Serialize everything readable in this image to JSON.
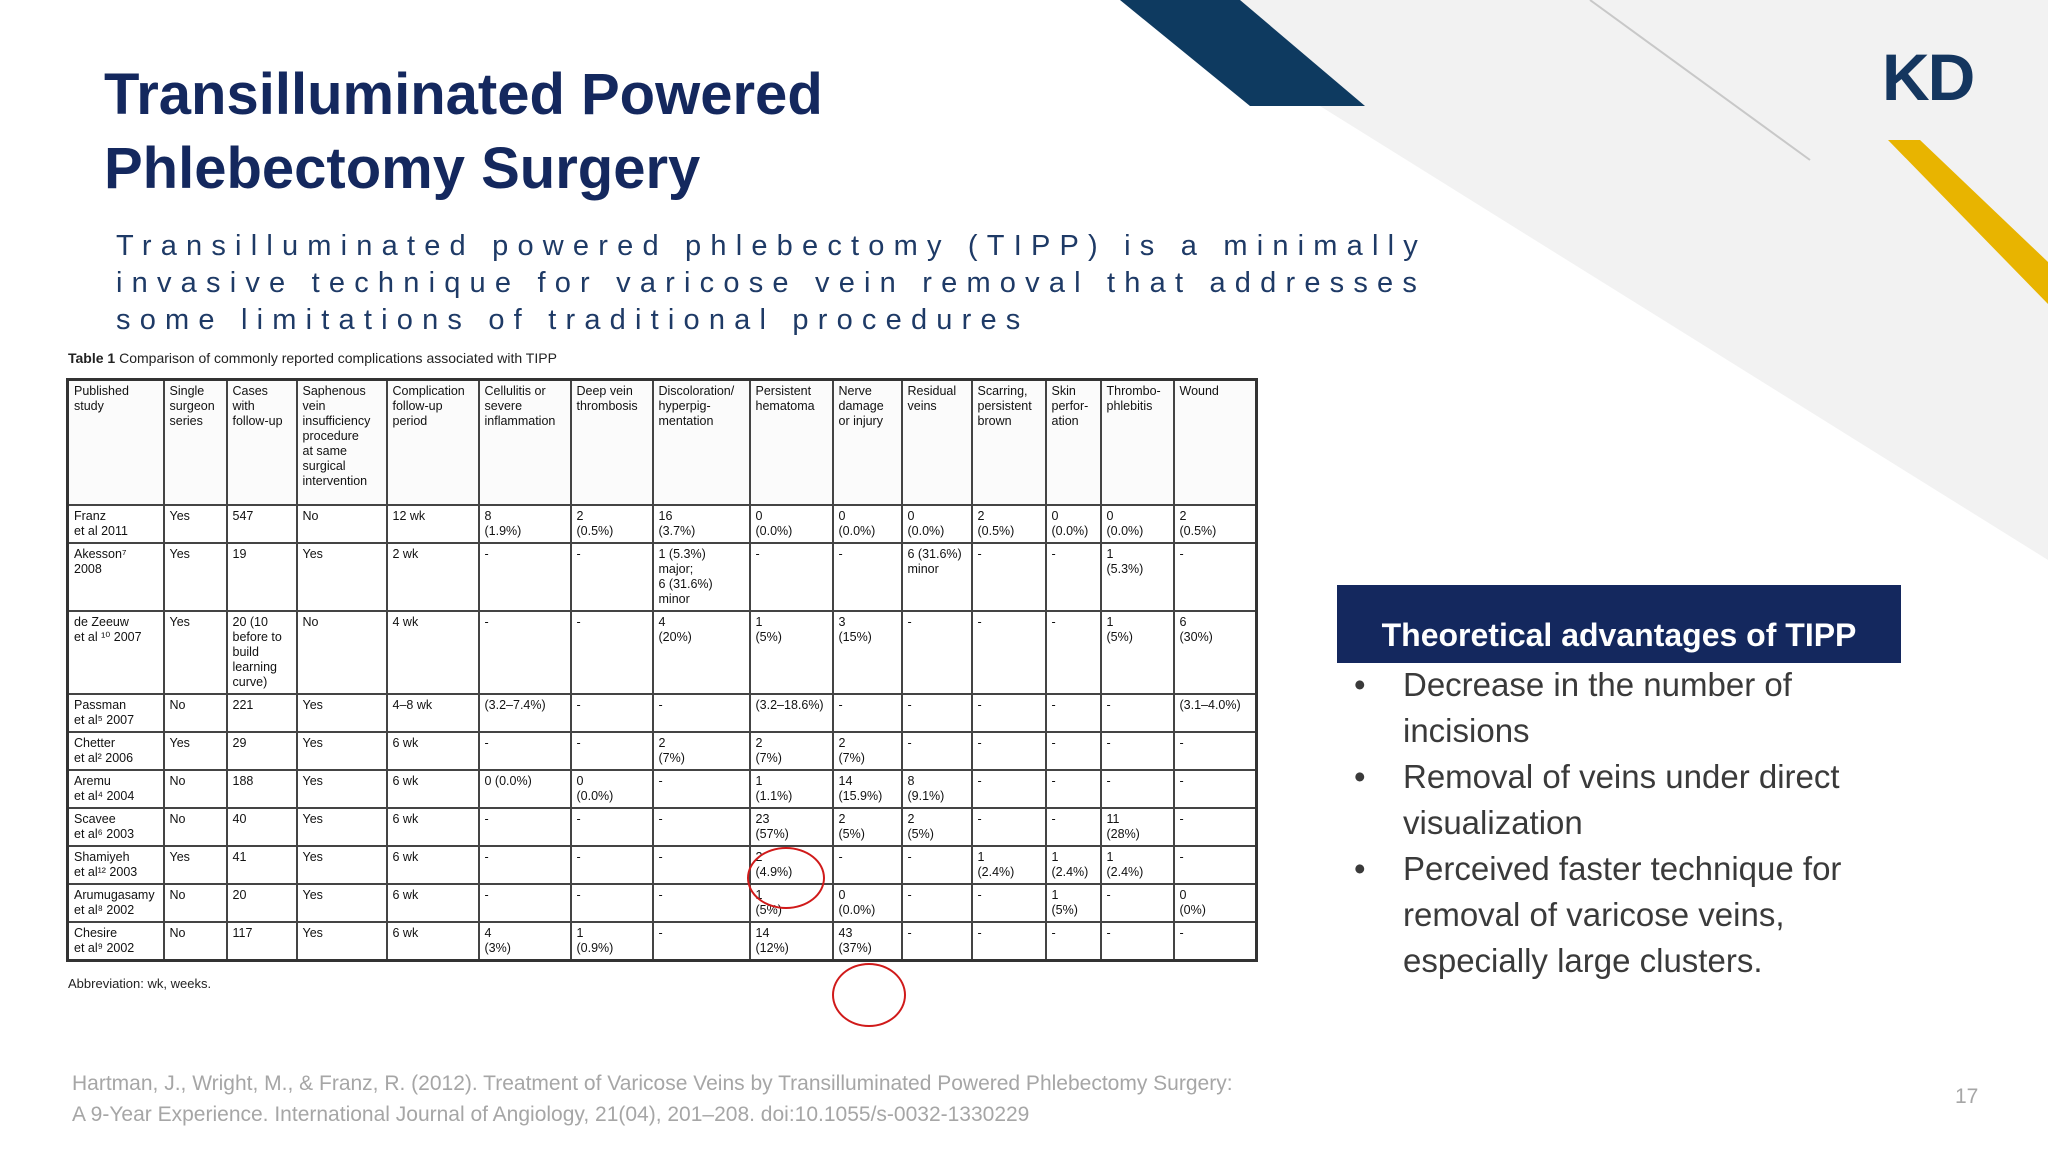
{
  "slide": {
    "title_line1": "Transilluminated Powered",
    "title_line2": "Phlebectomy Surgery",
    "subtitle_line1": "Transilluminated powered phlebectomy (TIPP) is a minimally",
    "subtitle_line2": "invasive technique for varicose vein removal that addresses",
    "subtitle_line3": "some limitations of traditional procedures",
    "logo": "KD",
    "page_number": "17",
    "colors": {
      "navy": "#14285e",
      "gold": "#e8b400",
      "dark_blue": "#0e3a60",
      "highlight_circle": "#d01a1a"
    }
  },
  "table": {
    "caption_label": "Table 1",
    "caption_text": "Comparison of commonly reported complications associated with TIPP",
    "headers": [
      "Published\nstudy",
      "Single\nsurgeon\nseries",
      "Cases\nwith\nfollow-up",
      "Saphenous\nvein\ninsufficiency\nprocedure\nat same\nsurgical\nintervention",
      "Complication\nfollow-up\nperiod",
      "Cellulitis or\nsevere\ninflammation",
      "Deep vein\nthrombosis",
      "Discoloration/\nhyperpig-\nmentation",
      "Persistent\nhematoma",
      "Nerve\ndamage\nor injury",
      "Residual\nveins",
      "Scarring,\npersistent\nbrown",
      "Skin\nperfor-\nation",
      "Thrombo-\nphlebitis",
      "Wound"
    ],
    "rows": [
      [
        "Franz\net al 2011",
        "Yes",
        "547",
        "No",
        "12 wk",
        "8\n(1.9%)",
        "2\n(0.5%)",
        "16\n(3.7%)",
        "0\n(0.0%)",
        "0\n(0.0%)",
        "0\n(0.0%)",
        "2\n(0.5%)",
        "0\n(0.0%)",
        "0\n(0.0%)",
        "2\n(0.5%)"
      ],
      [
        "Akesson⁷\n2008",
        "Yes",
        "19",
        "Yes",
        "2 wk",
        "-",
        "-",
        "1 (5.3%)\nmajor;\n6 (31.6%)\nminor",
        "-",
        "-",
        "6 (31.6%)\nminor",
        "-",
        "-",
        "1\n(5.3%)",
        "-"
      ],
      [
        "de Zeeuw\net al ¹⁰ 2007",
        "Yes",
        "20 (10\nbefore to\nbuild\nlearning\ncurve)",
        "No",
        "4 wk",
        "-",
        "-",
        "4\n(20%)",
        "1\n(5%)",
        "3\n(15%)",
        "-",
        "-",
        "-",
        "1\n(5%)",
        "6\n(30%)"
      ],
      [
        "Passman\net al⁵ 2007",
        "No",
        "221",
        "Yes",
        "4–8 wk",
        "(3.2–7.4%)",
        "-",
        "-",
        "(3.2–18.6%)",
        "-",
        "-",
        "-",
        "-",
        "-",
        "(3.1–4.0%)"
      ],
      [
        "Chetter\net al² 2006",
        "Yes",
        "29",
        "Yes",
        "6 wk",
        "-",
        "-",
        "2\n(7%)",
        "2\n(7%)",
        "2\n(7%)",
        "-",
        "-",
        "-",
        "-",
        "-"
      ],
      [
        "Aremu\net al⁴ 2004",
        "No",
        "188",
        "Yes",
        "6 wk",
        "0 (0.0%)",
        "0\n(0.0%)",
        "-",
        "1\n(1.1%)",
        "14\n(15.9%)",
        "8\n(9.1%)",
        "-",
        "-",
        "-",
        "-"
      ],
      [
        "Scavee\net al⁶ 2003",
        "No",
        "40",
        "Yes",
        "6 wk",
        "-",
        "-",
        "-",
        "23\n(57%)",
        "2\n(5%)",
        "2\n(5%)",
        "-",
        "-",
        "11\n(28%)",
        "-"
      ],
      [
        "Shamiyeh\net al¹² 2003",
        "Yes",
        "41",
        "Yes",
        "6 wk",
        "-",
        "-",
        "-",
        "2\n(4.9%)",
        "-",
        "-",
        "1\n(2.4%)",
        "1\n(2.4%)",
        "1\n(2.4%)",
        "-"
      ],
      [
        "Arumugasamy\net al⁸ 2002",
        "No",
        "20",
        "Yes",
        "6 wk",
        "-",
        "-",
        "-",
        "1\n(5%)",
        "0\n(0.0%)",
        "-",
        "-",
        "1\n(5%)",
        "-",
        "0\n(0%)"
      ],
      [
        "Chesire\net al⁹ 2002",
        "No",
        "117",
        "Yes",
        "6 wk",
        "4\n(3%)",
        "1\n(0.9%)",
        "-",
        "14\n(12%)",
        "43\n(37%)",
        "-",
        "-",
        "-",
        "-",
        "-"
      ]
    ],
    "abbreviation": "Abbreviation: wk, weeks."
  },
  "advantages": {
    "header": "Theoretical advantages of TIPP",
    "items": [
      "Decrease in the number of incisions",
      "Removal of veins under direct visualization",
      "Perceived faster technique for removal of varicose veins, especially large clusters."
    ]
  },
  "citation": {
    "line1": "Hartman, J., Wright, M., & Franz, R. (2012). Treatment of Varicose Veins by Transilluminated Powered Phlebectomy Surgery:",
    "line2": "A 9-Year Experience. International Journal of Angiology, 21(04), 201–208. doi:10.1055/s-0032-1330229"
  }
}
